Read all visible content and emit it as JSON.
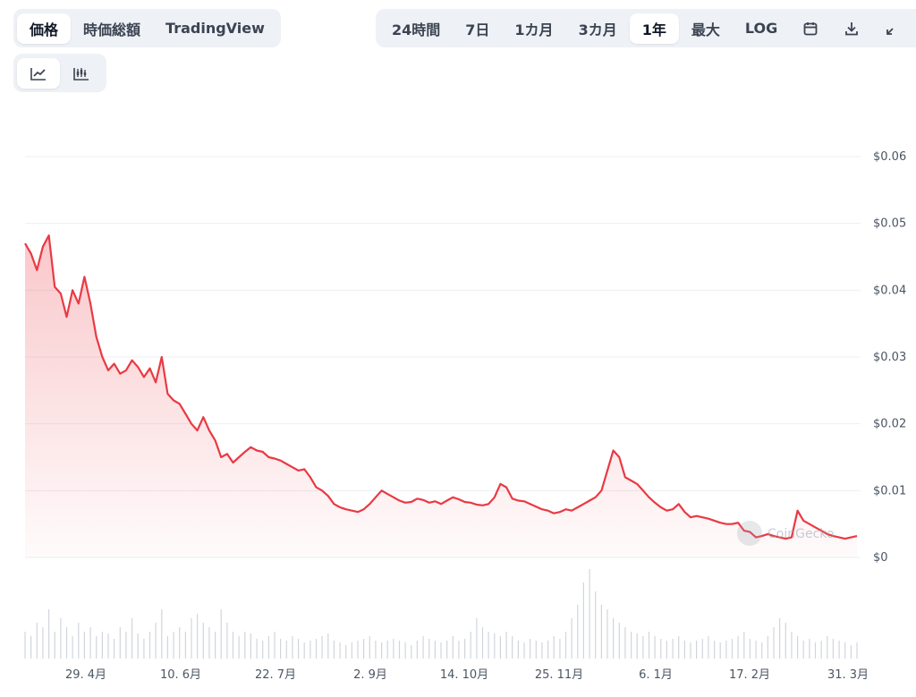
{
  "toolbar": {
    "metric_tabs": [
      {
        "label": "価格",
        "active": true
      },
      {
        "label": "時価総額",
        "active": false
      },
      {
        "label": "TradingView",
        "active": false
      }
    ],
    "range_tabs": [
      {
        "label": "24時間",
        "active": false
      },
      {
        "label": "7日",
        "active": false
      },
      {
        "label": "1カ月",
        "active": false
      },
      {
        "label": "3カ月",
        "active": false
      },
      {
        "label": "1年",
        "active": true
      },
      {
        "label": "最大",
        "active": false
      },
      {
        "label": "LOG",
        "active": false
      }
    ],
    "icons": [
      "calendar-icon",
      "download-icon",
      "expand-icon"
    ],
    "chart_type_icons": [
      {
        "icon": "line-chart-icon",
        "active": true
      },
      {
        "icon": "candlestick-chart-icon",
        "active": false
      }
    ]
  },
  "watermark": "CoinGecko",
  "colors": {
    "line": "#ea3943",
    "grid": "#eceff3",
    "volume": "#d1d5db"
  },
  "chart_data": {
    "type": "area",
    "x_tick_labels": [
      "29. 4月",
      "10. 6月",
      "22. 7月",
      "2. 9月",
      "14. 10月",
      "25. 11月",
      "6. 1月",
      "17. 2月",
      "31. 3月"
    ],
    "y_tick_labels": [
      "$0",
      "$0.01",
      "$0.02",
      "$0.03",
      "$0.04",
      "$0.05",
      "$0.06"
    ],
    "ylim": [
      0,
      0.06
    ],
    "grid": true,
    "series": [
      {
        "values": [
          0.047,
          0.0455,
          0.043,
          0.0465,
          0.0482,
          0.0405,
          0.0395,
          0.036,
          0.04,
          0.038,
          0.042,
          0.038,
          0.033,
          0.03,
          0.028,
          0.029,
          0.0275,
          0.028,
          0.0295,
          0.0285,
          0.027,
          0.0283,
          0.0262,
          0.03,
          0.0245,
          0.0235,
          0.023,
          0.0215,
          0.02,
          0.019,
          0.021,
          0.019,
          0.0175,
          0.015,
          0.0155,
          0.0142,
          0.015,
          0.0158,
          0.0165,
          0.016,
          0.0158,
          0.015,
          0.0148,
          0.0145,
          0.014,
          0.0135,
          0.013,
          0.0132,
          0.012,
          0.0105,
          0.01,
          0.0092,
          0.008,
          0.0075,
          0.0072,
          0.007,
          0.0068,
          0.0072,
          0.008,
          0.009,
          0.01,
          0.0095,
          0.009,
          0.0085,
          0.0082,
          0.0083,
          0.0088,
          0.0086,
          0.0082,
          0.0084,
          0.008,
          0.0085,
          0.009,
          0.0087,
          0.0083,
          0.0082,
          0.0079,
          0.0078,
          0.008,
          0.009,
          0.011,
          0.0105,
          0.0088,
          0.0085,
          0.0084,
          0.008,
          0.0076,
          0.0072,
          0.007,
          0.0066,
          0.0068,
          0.0072,
          0.007,
          0.0075,
          0.008,
          0.0085,
          0.009,
          0.01,
          0.013,
          0.016,
          0.015,
          0.012,
          0.0115,
          0.011,
          0.01,
          0.009,
          0.0082,
          0.0075,
          0.007,
          0.0072,
          0.008,
          0.0068,
          0.006,
          0.0062,
          0.006,
          0.0058,
          0.0055,
          0.0052,
          0.005,
          0.005,
          0.0052,
          0.004,
          0.0038,
          0.003,
          0.0032,
          0.0035,
          0.0032,
          0.003,
          0.0028,
          0.003,
          0.007,
          0.0055,
          0.005,
          0.0045,
          0.004,
          0.0035,
          0.0032,
          0.003,
          0.0028,
          0.003,
          0.0032
        ]
      }
    ],
    "volume_relative": [
      0.3,
      0.25,
      0.4,
      0.35,
      0.55,
      0.3,
      0.45,
      0.35,
      0.25,
      0.4,
      0.3,
      0.35,
      0.25,
      0.3,
      0.28,
      0.22,
      0.35,
      0.3,
      0.45,
      0.28,
      0.22,
      0.3,
      0.4,
      0.55,
      0.25,
      0.3,
      0.35,
      0.3,
      0.45,
      0.5,
      0.4,
      0.35,
      0.3,
      0.55,
      0.4,
      0.3,
      0.25,
      0.3,
      0.28,
      0.22,
      0.2,
      0.25,
      0.3,
      0.22,
      0.2,
      0.25,
      0.22,
      0.18,
      0.2,
      0.22,
      0.25,
      0.28,
      0.2,
      0.18,
      0.15,
      0.18,
      0.2,
      0.22,
      0.25,
      0.2,
      0.18,
      0.2,
      0.22,
      0.2,
      0.18,
      0.15,
      0.2,
      0.25,
      0.22,
      0.2,
      0.18,
      0.2,
      0.25,
      0.2,
      0.22,
      0.3,
      0.45,
      0.35,
      0.3,
      0.28,
      0.25,
      0.3,
      0.25,
      0.2,
      0.18,
      0.22,
      0.2,
      0.18,
      0.2,
      0.25,
      0.22,
      0.3,
      0.45,
      0.6,
      0.85,
      1.0,
      0.75,
      0.6,
      0.55,
      0.45,
      0.4,
      0.35,
      0.3,
      0.28,
      0.25,
      0.3,
      0.25,
      0.22,
      0.2,
      0.22,
      0.25,
      0.2,
      0.18,
      0.2,
      0.22,
      0.25,
      0.2,
      0.18,
      0.2,
      0.22,
      0.25,
      0.3,
      0.22,
      0.2,
      0.18,
      0.25,
      0.35,
      0.45,
      0.4,
      0.3,
      0.25,
      0.2,
      0.22,
      0.18,
      0.2,
      0.25,
      0.22,
      0.2,
      0.18,
      0.15,
      0.18
    ]
  }
}
